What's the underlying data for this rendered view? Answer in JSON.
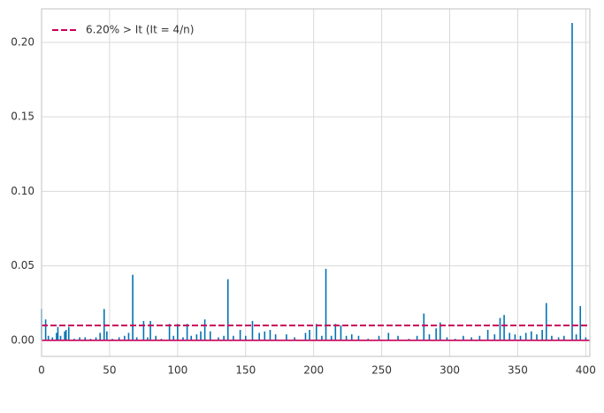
{
  "chart_data": {
    "type": "stem",
    "x": [
      0,
      3,
      5,
      8,
      11,
      12,
      14,
      17,
      18,
      20,
      24,
      28,
      32,
      36,
      40,
      43,
      46,
      48,
      52,
      57,
      61,
      64,
      67,
      70,
      75,
      78,
      80,
      84,
      88,
      94,
      97,
      100,
      104,
      107,
      110,
      114,
      117,
      120,
      124,
      130,
      134,
      137,
      141,
      146,
      150,
      155,
      160,
      164,
      168,
      172,
      180,
      186,
      194,
      197,
      202,
      206,
      209,
      213,
      216,
      220,
      224,
      228,
      233,
      240,
      248,
      255,
      262,
      270,
      276,
      281,
      285,
      290,
      293,
      298,
      304,
      310,
      316,
      322,
      328,
      333,
      337,
      340,
      344,
      348,
      352,
      356,
      360,
      364,
      368,
      371,
      375,
      380,
      384,
      390,
      393,
      396,
      400
    ],
    "series": [
      {
        "color": "#0173b2",
        "values": [
          0.021,
          0.014,
          0.003,
          0.002,
          0.005,
          0.009,
          0.003,
          0.006,
          0.007,
          0.009,
          0.001,
          0.002,
          0.002,
          0.001,
          0.002,
          0.005,
          0.021,
          0.006,
          0.001,
          0.002,
          0.003,
          0.005,
          0.044,
          0.002,
          0.013,
          0.002,
          0.013,
          0.003,
          0.001,
          0.011,
          0.003,
          0.011,
          0.002,
          0.011,
          0.003,
          0.004,
          0.006,
          0.014,
          0.006,
          0.002,
          0.003,
          0.041,
          0.003,
          0.007,
          0.003,
          0.013,
          0.005,
          0.006,
          0.007,
          0.004,
          0.004,
          0.002,
          0.005,
          0.007,
          0.011,
          0.003,
          0.048,
          0.003,
          0.011,
          0.01,
          0.003,
          0.004,
          0.003,
          0.001,
          0.003,
          0.005,
          0.003,
          0.001,
          0.003,
          0.018,
          0.004,
          0.008,
          0.012,
          0.002,
          0.001,
          0.003,
          0.002,
          0.003,
          0.007,
          0.004,
          0.015,
          0.017,
          0.005,
          0.004,
          0.003,
          0.005,
          0.006,
          0.004,
          0.007,
          0.025,
          0.003,
          0.002,
          0.003,
          0.213,
          0.004,
          0.023,
          0.002
        ]
      }
    ],
    "threshold": {
      "name": "6.20% > It (It = 4/n)",
      "value": 0.01,
      "color": "#c8005a"
    },
    "baseline_color": "#c8005a",
    "xlim": [
      0,
      403
    ],
    "xticks": [
      0,
      50,
      100,
      150,
      200,
      250,
      300,
      350,
      400
    ],
    "ylim": [
      -0.0108,
      0.2225
    ],
    "yticks": [
      {
        "value": 0,
        "label": "0.00"
      },
      {
        "value": 0.05,
        "label": "0.05"
      },
      {
        "value": 0.1,
        "label": "0.10"
      },
      {
        "value": 0.15,
        "label": "0.15"
      },
      {
        "value": 0.2,
        "label": "0.20"
      }
    ],
    "grid": true,
    "legend": "upper left"
  }
}
